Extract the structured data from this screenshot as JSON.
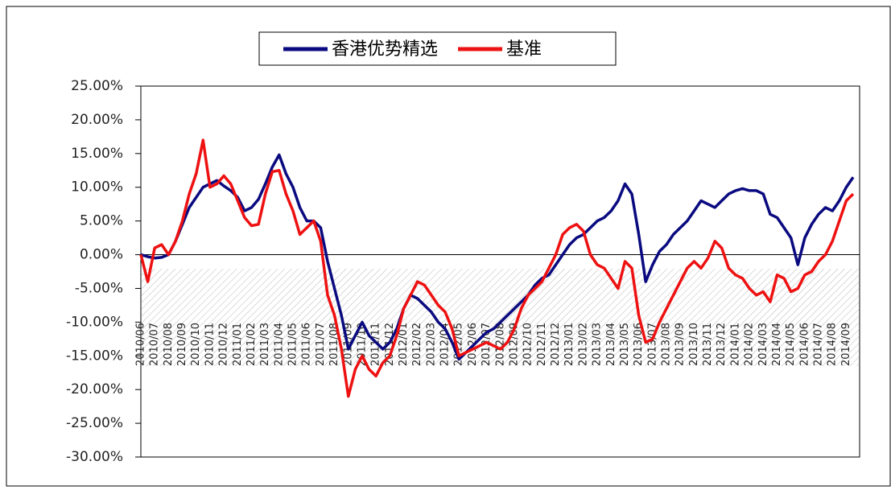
{
  "chart_data": {
    "type": "line",
    "categories": [
      "2010/06",
      null,
      "2010/07",
      null,
      "2010/08",
      null,
      "2010/09",
      null,
      "2010/10",
      null,
      "2010/11",
      null,
      "2010/12",
      null,
      "2011/01",
      null,
      "2011/02",
      null,
      "2011/03",
      null,
      "2011/04",
      null,
      "2011/05",
      null,
      "2011/06",
      null,
      "2011/07",
      null,
      "2011/08",
      null,
      "2011/09",
      null,
      "2011/10",
      null,
      "2011/11",
      null,
      "2011/12",
      null,
      "2012/01",
      null,
      "2012/02",
      null,
      "2012/03",
      null,
      "2012/04",
      null,
      "2012/05",
      null,
      "2012/06",
      null,
      "2012/07",
      null,
      "2012/08",
      null,
      "2012/09",
      null,
      "2012/10",
      null,
      "2012/11",
      null,
      "2012/12",
      null,
      "2013/01",
      null,
      "2013/02",
      null,
      "2013/03",
      null,
      "2013/04",
      null,
      "2013/05",
      null,
      "2013/06",
      null,
      "2013/07",
      null,
      "2013/08",
      null,
      "2013/09",
      null,
      "2013/10",
      null,
      "2013/11",
      null,
      "2013/12",
      null,
      "2014/01",
      null,
      "2014/02",
      null,
      "2014/03",
      null,
      "2014/04",
      null,
      "2014/05",
      null,
      "2014/06",
      null,
      "2014/07",
      null,
      "2014/08",
      null,
      "2014/09",
      null
    ],
    "series": [
      {
        "name": "香港优势精选",
        "color": "#0a0a80",
        "values": [
          0,
          -0.3,
          -0.5,
          -0.4,
          0,
          2,
          4.5,
          7,
          8.5,
          10,
          10.5,
          11,
          10.2,
          9.5,
          8.5,
          6.5,
          7,
          8.2,
          10.5,
          13,
          14.8,
          12,
          10,
          7,
          5,
          5,
          4,
          -1,
          -5,
          -9,
          -14,
          -12,
          -10,
          -12,
          -13,
          -14,
          -13,
          -11,
          -8,
          -6,
          -6.5,
          -7.5,
          -8.5,
          -10,
          -11,
          -13,
          -15.5,
          -14.5,
          -13.5,
          -12.5,
          -11.5,
          -11,
          -10,
          -9,
          -8,
          -7,
          -6,
          -4.5,
          -3.5,
          -3,
          -1.5,
          0,
          1.5,
          2.5,
          3,
          4,
          5,
          5.5,
          6.5,
          8,
          10.5,
          9,
          3,
          -4,
          -1.5,
          0.5,
          1.5,
          3,
          4,
          5,
          6.5,
          8,
          7.5,
          7,
          8,
          9,
          9.5,
          9.8,
          9.5,
          9.5,
          9,
          6,
          5.5,
          4,
          2.5,
          -1.5,
          2.5,
          4.5,
          6,
          7,
          6.5,
          8,
          10,
          11.5
        ]
      },
      {
        "name": "基准",
        "color": "#ee1111",
        "values": [
          0,
          -4,
          1,
          1.5,
          0,
          2,
          5,
          9,
          12,
          17,
          10,
          10.5,
          11.7,
          10.5,
          8,
          5.5,
          4.3,
          4.5,
          9,
          12.3,
          12.5,
          9,
          6.5,
          3,
          4,
          5,
          2,
          -6,
          -9,
          -14,
          -21,
          -17,
          -15,
          -17,
          -18,
          -16,
          -15,
          -12,
          -8,
          -6,
          -4,
          -4.5,
          -6,
          -7.5,
          -8.5,
          -11,
          -15,
          -14.5,
          -14,
          -13.5,
          -13,
          -13.5,
          -14,
          -13,
          -11,
          -8,
          -6,
          -5,
          -4,
          -2,
          0,
          3,
          4,
          4.5,
          3.5,
          0,
          -1.5,
          -2,
          -3.5,
          -5,
          -1,
          -2,
          -9,
          -13,
          -12.5,
          -10,
          -8,
          -6,
          -4,
          -2,
          -1,
          -2,
          -0.5,
          2,
          1,
          -2,
          -3,
          -3.5,
          -5,
          -6,
          -5.5,
          -7,
          -3,
          -3.5,
          -5.5,
          -5,
          -3,
          -2.5,
          -1,
          0,
          2,
          5,
          8,
          9
        ]
      }
    ],
    "ylim": [
      -30,
      25
    ],
    "yticks": [
      {
        "value": -30,
        "label": "-30.00%"
      },
      {
        "value": -25,
        "label": "-25.00%"
      },
      {
        "value": -20,
        "label": "-20.00%"
      },
      {
        "value": -15,
        "label": "-15.00%"
      },
      {
        "value": -10,
        "label": "-10.00%"
      },
      {
        "value": -5,
        "label": "-5.00%"
      },
      {
        "value": 0,
        "label": "0.00%"
      },
      {
        "value": 5,
        "label": "5.00%"
      },
      {
        "value": 10,
        "label": "10.00%"
      },
      {
        "value": 15,
        "label": "15.00%"
      },
      {
        "value": 20,
        "label": "20.00%"
      },
      {
        "value": 25,
        "label": "25.00%"
      }
    ],
    "grid": false
  }
}
